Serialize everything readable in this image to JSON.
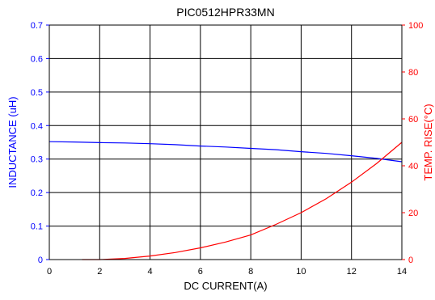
{
  "chart_data": {
    "type": "line",
    "title": "PIC0512HPR33MN",
    "xlabel": "DC CURRENT(A)",
    "ylabel_left": "INDUCTANCE (uH)",
    "ylabel_right": "TEMP. RISE(°C)",
    "xlim": [
      0,
      14
    ],
    "ylim_left": [
      0,
      0.7
    ],
    "ylim_right": [
      0,
      100
    ],
    "x_ticks": [
      "0",
      "2",
      "4",
      "6",
      "8",
      "10",
      "12",
      "14"
    ],
    "y_ticks_left": [
      "0",
      "0.1",
      "0.2",
      "0.3",
      "0.4",
      "0.5",
      "0.6",
      "0.7"
    ],
    "y_ticks_right": [
      "0",
      "20",
      "40",
      "60",
      "80",
      "100"
    ],
    "grid": true,
    "colors": {
      "inductance": "#0000ff",
      "temp_rise": "#ff0000",
      "axes": "#000000"
    },
    "series": [
      {
        "axis": "left",
        "x": [
          0,
          1,
          2,
          3,
          4,
          5,
          6,
          7,
          8,
          9,
          10,
          11,
          12,
          13,
          14
        ],
        "values": [
          0.352,
          0.351,
          0.349,
          0.348,
          0.346,
          0.343,
          0.339,
          0.336,
          0.332,
          0.328,
          0.322,
          0.317,
          0.31,
          0.302,
          0.292
        ]
      },
      {
        "axis": "right",
        "x": [
          1.3,
          2,
          3,
          4,
          5,
          6,
          7,
          8,
          9,
          10,
          11,
          12,
          13,
          14
        ],
        "values": [
          0,
          0,
          0.5,
          1.5,
          3,
          5,
          7.5,
          10.5,
          15,
          20,
          26,
          33,
          41,
          50
        ]
      }
    ]
  }
}
